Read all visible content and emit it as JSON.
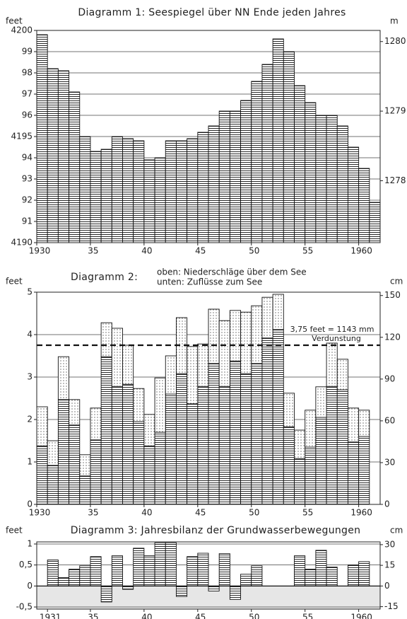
{
  "chart_data": [
    {
      "type": "bar",
      "title": "Diagramm 1: Seespiegel über NN Ende jeden Jahres",
      "ylabel": "feet",
      "y2label": "m",
      "pattern": "hatch",
      "color": "#111111",
      "grid": true,
      "x": [
        1930,
        1931,
        1932,
        1933,
        1934,
        1935,
        1936,
        1937,
        1938,
        1939,
        1940,
        1941,
        1942,
        1943,
        1944,
        1945,
        1946,
        1947,
        1948,
        1949,
        1950,
        1951,
        1952,
        1953,
        1954,
        1955,
        1956,
        1957,
        1958,
        1959,
        1960,
        1961
      ],
      "series": [
        {
          "values": [
            4199.8,
            4198.2,
            4198.1,
            4197.1,
            4195.0,
            4194.3,
            4194.4,
            4195.0,
            4194.9,
            4194.8,
            4193.9,
            4194.0,
            4194.8,
            4194.8,
            4194.9,
            4195.2,
            4195.5,
            4196.2,
            4196.2,
            4196.7,
            4197.6,
            4198.4,
            4199.6,
            4199.0,
            4197.4,
            4196.6,
            4196.0,
            4196.0,
            4195.5,
            4194.5,
            4193.5,
            4191.9
          ]
        }
      ],
      "xlim": [
        1930,
        1962
      ],
      "xticks": [
        1930,
        {
          "value": 1935,
          "label": "35"
        },
        {
          "value": 1940,
          "label": "40"
        },
        {
          "value": 1945,
          "label": "45"
        },
        {
          "value": 1950,
          "label": "50"
        },
        {
          "value": 1955,
          "label": "55"
        },
        1960
      ],
      "ylim": [
        4190,
        4200
      ],
      "yticks": [
        4190,
        {
          "value": 4191,
          "label": "91"
        },
        {
          "value": 4192,
          "label": "92"
        },
        {
          "value": 4193,
          "label": "93"
        },
        {
          "value": 4194,
          "label": "94"
        },
        4195,
        {
          "value": 4196,
          "label": "96"
        },
        {
          "value": 4197,
          "label": "97"
        },
        {
          "value": 4198,
          "label": "98"
        },
        {
          "value": 4199,
          "label": "99"
        },
        4200
      ],
      "y2lim": [
        1277.11,
        1280.16
      ],
      "y2ticks": [
        1278,
        1279,
        1280
      ]
    },
    {
      "type": "bar",
      "stacked": true,
      "title": "Diagramm 2:",
      "ylabel": "feet",
      "y2label": "cm",
      "grid": true,
      "x": [
        1930,
        1931,
        1932,
        1933,
        1934,
        1935,
        1936,
        1937,
        1938,
        1939,
        1940,
        1941,
        1942,
        1943,
        1944,
        1945,
        1946,
        1947,
        1948,
        1949,
        1950,
        1951,
        1952,
        1953,
        1954,
        1955,
        1956,
        1957,
        1958,
        1959,
        1960
      ],
      "series": [
        {
          "name": "unten: Zuflüsse zum See",
          "pattern": "hatch",
          "color": "#111111",
          "values": [
            1.38,
            0.92,
            2.47,
            1.87,
            0.67,
            1.52,
            3.48,
            2.78,
            2.83,
            1.95,
            1.38,
            1.7,
            2.6,
            3.08,
            2.37,
            2.78,
            3.32,
            2.78,
            3.38,
            3.08,
            3.32,
            3.92,
            4.12,
            1.83,
            1.08,
            1.35,
            2.05,
            2.78,
            2.7,
            1.47,
            1.6
          ]
        },
        {
          "name": "oben: Niederschläge über dem See",
          "pattern": "dots",
          "color": "#111111",
          "values": [
            0.92,
            0.58,
            1.01,
            0.6,
            0.5,
            0.75,
            0.8,
            1.37,
            0.92,
            0.78,
            0.74,
            1.28,
            0.9,
            1.32,
            1.35,
            1.0,
            1.28,
            1.55,
            1.19,
            1.45,
            1.36,
            0.96,
            0.83,
            0.79,
            0.67,
            0.87,
            0.72,
            1.02,
            0.72,
            0.8,
            0.62
          ]
        }
      ],
      "reference_line": {
        "value": 3.75,
        "labels": [
          "3,75 feet = 1143 mm",
          "Verdunstung"
        ]
      },
      "xlim": [
        1930,
        1962
      ],
      "xticks": [
        1930,
        {
          "value": 1935,
          "label": "35"
        },
        {
          "value": 1940,
          "label": "40"
        },
        {
          "value": 1945,
          "label": "45"
        },
        {
          "value": 1950,
          "label": "50"
        },
        {
          "value": 1955,
          "label": "55"
        },
        1960
      ],
      "ylim": [
        0,
        5
      ],
      "yticks": [
        0,
        1,
        2,
        3,
        4,
        5
      ],
      "y2lim": [
        0,
        152.4
      ],
      "y2ticks": [
        0,
        30,
        60,
        90,
        120,
        150
      ]
    },
    {
      "type": "bar",
      "title": "Diagramm 3: Jahresbilanz der Grundwasserbewegungen",
      "ylabel": "feet",
      "y2label": "cm",
      "pattern": "hatch",
      "color": "#111111",
      "grid": true,
      "x": [
        1931,
        1932,
        1933,
        1934,
        1935,
        1936,
        1937,
        1938,
        1939,
        1940,
        1941,
        1942,
        1943,
        1944,
        1945,
        1946,
        1947,
        1948,
        1949,
        1950,
        1951,
        1952,
        1953,
        1954,
        1955,
        1956,
        1957,
        1958,
        1959,
        1960
      ],
      "series": [
        {
          "values": [
            0.62,
            0.2,
            0.4,
            0.48,
            0.7,
            -0.38,
            0.72,
            -0.08,
            0.9,
            0.72,
            1.03,
            1.03,
            -0.25,
            0.7,
            0.78,
            -0.12,
            0.77,
            -0.32,
            0.28,
            0.48,
            null,
            null,
            null,
            0.72,
            0.4,
            0.85,
            0.45,
            null,
            0.5,
            0.58
          ]
        }
      ],
      "xlim": [
        1930,
        1962
      ],
      "xticks": [
        1931,
        {
          "value": 1935,
          "label": "35"
        },
        {
          "value": 1940,
          "label": "40"
        },
        {
          "value": 1945,
          "label": "45"
        },
        {
          "value": 1950,
          "label": "50"
        },
        {
          "value": 1955,
          "label": "55"
        },
        1960
      ],
      "ylim": [
        -0.55,
        1.05
      ],
      "yticks": [
        {
          "value": -0.5,
          "label": "-0,5"
        },
        0,
        {
          "value": 0.5,
          "label": "0,5"
        },
        1
      ],
      "y2lim": [
        -16.76,
        32.0
      ],
      "y2ticks": [
        -15,
        0,
        15,
        30
      ]
    }
  ]
}
